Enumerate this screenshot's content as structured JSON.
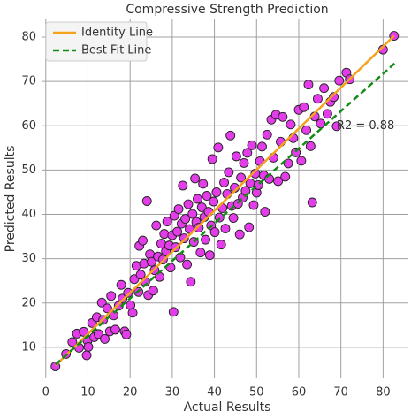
{
  "chart_data": {
    "type": "scatter",
    "title": "Compressive Strength Prediction",
    "x_label": "Actual Results",
    "y_label": "Predicted Results",
    "xlim": [
      -1,
      86
    ],
    "ylim": [
      3,
      84
    ],
    "xticks": [
      0,
      10,
      20,
      30,
      40,
      50,
      60,
      70,
      80
    ],
    "yticks": [
      10,
      20,
      30,
      40,
      50,
      60,
      70,
      80
    ],
    "grid": true,
    "legend": "upper left",
    "color": "#e23de8",
    "annotation": "R2 = 0.88",
    "lines": [
      {
        "name": "Identity Line",
        "color": "#f5a11c",
        "dashed": false,
        "x": [
          2.3,
          82.6
        ],
        "values": [
          5.9,
          80.3
        ]
      },
      {
        "name": "Best Fit Line",
        "color": "#138a13",
        "dashed": true,
        "x": [
          2.3,
          83
        ],
        "values": [
          6.1,
          74.3
        ]
      }
    ],
    "x": [
      2.3,
      4.8,
      6.3,
      7.4,
      7.9,
      9.0,
      9.7,
      9.9,
      10.1,
      11.0,
      11.5,
      12.1,
      12.5,
      13.3,
      13.6,
      14.0,
      14.6,
      15.2,
      15.5,
      16.1,
      16.5,
      17.3,
      17.9,
      18.2,
      18.7,
      19.1,
      19.5,
      20.1,
      20.6,
      21.0,
      21.5,
      22.0,
      22.2,
      22.5,
      23.0,
      23.3,
      23.6,
      24.0,
      24.3,
      24.7,
      25.1,
      25.5,
      25.8,
      26.2,
      26.6,
      27.0,
      27.4,
      27.8,
      28.1,
      28.5,
      28.8,
      29.3,
      29.6,
      30.0,
      30.3,
      30.5,
      30.8,
      31.2,
      31.5,
      31.9,
      32.2,
      32.5,
      32.8,
      33.1,
      33.5,
      33.8,
      34.1,
      34.4,
      34.8,
      35.1,
      35.4,
      35.7,
      36.0,
      36.3,
      36.7,
      37.0,
      37.3,
      37.6,
      37.9,
      38.2,
      38.6,
      38.9,
      39.2,
      39.5,
      39.8,
      40.1,
      40.5,
      40.9,
      41.2,
      41.6,
      41.9,
      42.3,
      42.6,
      43.0,
      43.4,
      43.8,
      44.1,
      44.5,
      44.8,
      45.2,
      45.6,
      46.0,
      46.3,
      46.7,
      47.0,
      47.4,
      47.8,
      48.2,
      48.5,
      48.9,
      49.3,
      49.7,
      50.0,
      50.4,
      50.8,
      51.3,
      51.7,
      52.0,
      52.5,
      53.0,
      53.5,
      54.0,
      54.6,
      55.1,
      55.7,
      56.2,
      56.8,
      57.5,
      58.1,
      58.7,
      59.3,
      60.0,
      60.6,
      61.2,
      61.8,
      62.3,
      62.8,
      63.2,
      63.8,
      64.5,
      65.2,
      66.0,
      66.8,
      67.5,
      68.3,
      69.0,
      69.6,
      71.3,
      72.1,
      80.0,
      82.6
    ],
    "values": [
      5.7,
      8.5,
      11.2,
      13.1,
      9.9,
      13.5,
      8.2,
      11.5,
      10.1,
      15.5,
      12.3,
      16.8,
      13.0,
      20.1,
      16.2,
      11.9,
      18.8,
      13.6,
      21.6,
      17.2,
      14.0,
      19.4,
      24.1,
      21.0,
      13.6,
      12.9,
      22.3,
      19.5,
      17.8,
      25.4,
      28.4,
      22.5,
      32.9,
      26.4,
      34.1,
      28.9,
      24.8,
      43.0,
      21.8,
      31.0,
      29.3,
      22.8,
      27.4,
      37.5,
      30.5,
      25.9,
      33.4,
      29.8,
      35.6,
      31.7,
      38.4,
      33.0,
      28.0,
      35.3,
      18.0,
      39.7,
      32.6,
      36.1,
      41.2,
      30.3,
      37.9,
      46.5,
      34.6,
      39.0,
      28.7,
      42.3,
      36.7,
      24.8,
      40.1,
      33.8,
      48.1,
      38.3,
      43.5,
      37.0,
      31.4,
      41.6,
      46.9,
      39.4,
      34.3,
      44.2,
      40.6,
      30.8,
      37.5,
      52.5,
      42.9,
      36.0,
      45.0,
      55.1,
      39.3,
      33.2,
      41.4,
      47.2,
      36.8,
      44.6,
      49.5,
      57.8,
      41.9,
      39.2,
      46.0,
      53.1,
      42.4,
      35.5,
      48.3,
      43.8,
      51.6,
      45.3,
      53.9,
      37.1,
      47.0,
      55.6,
      42.1,
      49.2,
      44.9,
      46.6,
      52.0,
      55.3,
      48.8,
      40.6,
      58.0,
      48.0,
      61.4,
      52.8,
      62.5,
      47.5,
      56.4,
      62.0,
      48.5,
      51.5,
      60.3,
      57.2,
      54.0,
      63.6,
      52.1,
      64.2,
      59.0,
      69.3,
      55.4,
      42.7,
      62.1,
      66.1,
      60.5,
      68.5,
      62.7,
      65.4,
      66.5,
      59.9,
      70.2,
      72.0,
      70.5,
      77.2,
      80.3
    ]
  }
}
